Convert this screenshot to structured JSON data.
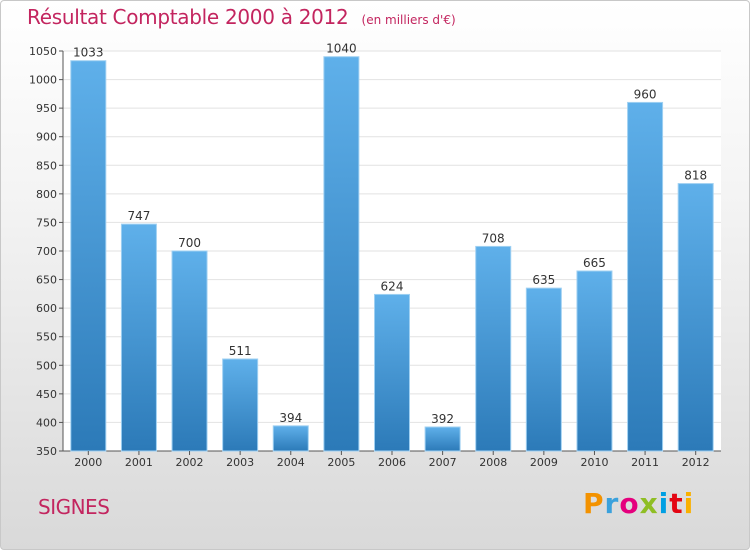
{
  "title": "Résultat Comptable 2000 à 2012",
  "subtitle": "(en milliers d'€)",
  "commune": "SIGNES",
  "logo": {
    "text": "Proxiti",
    "letters": [
      "P",
      "r",
      "o",
      "x",
      "i",
      "t",
      "i"
    ]
  },
  "colors": {
    "title": "#c3255f",
    "bar_top": "#5fb0ea",
    "bar_bottom": "#2c7ab8",
    "grid": "#e2e2e2",
    "axis": "#555555"
  },
  "chart_data": {
    "type": "bar",
    "title": "Résultat Comptable 2000 à 2012",
    "ylabel": "",
    "xlabel": "",
    "categories": [
      "2000",
      "2001",
      "2002",
      "2003",
      "2004",
      "2005",
      "2006",
      "2007",
      "2008",
      "2009",
      "2010",
      "2011",
      "2012"
    ],
    "values": [
      1033,
      747,
      700,
      511,
      394,
      1040,
      624,
      392,
      708,
      635,
      665,
      960,
      818
    ],
    "data_labels": [
      "1033",
      "747",
      "700",
      "511",
      "394",
      "1040",
      "624",
      "392",
      "708",
      "635",
      "665",
      "960",
      "818"
    ],
    "ylim": [
      350,
      1050
    ],
    "yticks": [
      350,
      400,
      450,
      500,
      550,
      600,
      650,
      700,
      750,
      800,
      850,
      900,
      950,
      1000,
      1050
    ],
    "ytick_labels": [
      "350",
      "400",
      "450",
      "500",
      "550",
      "600",
      "650",
      "700",
      "750",
      "800",
      "850",
      "900",
      "950",
      "1000",
      "1050"
    ],
    "grid": true,
    "legend": "none"
  }
}
